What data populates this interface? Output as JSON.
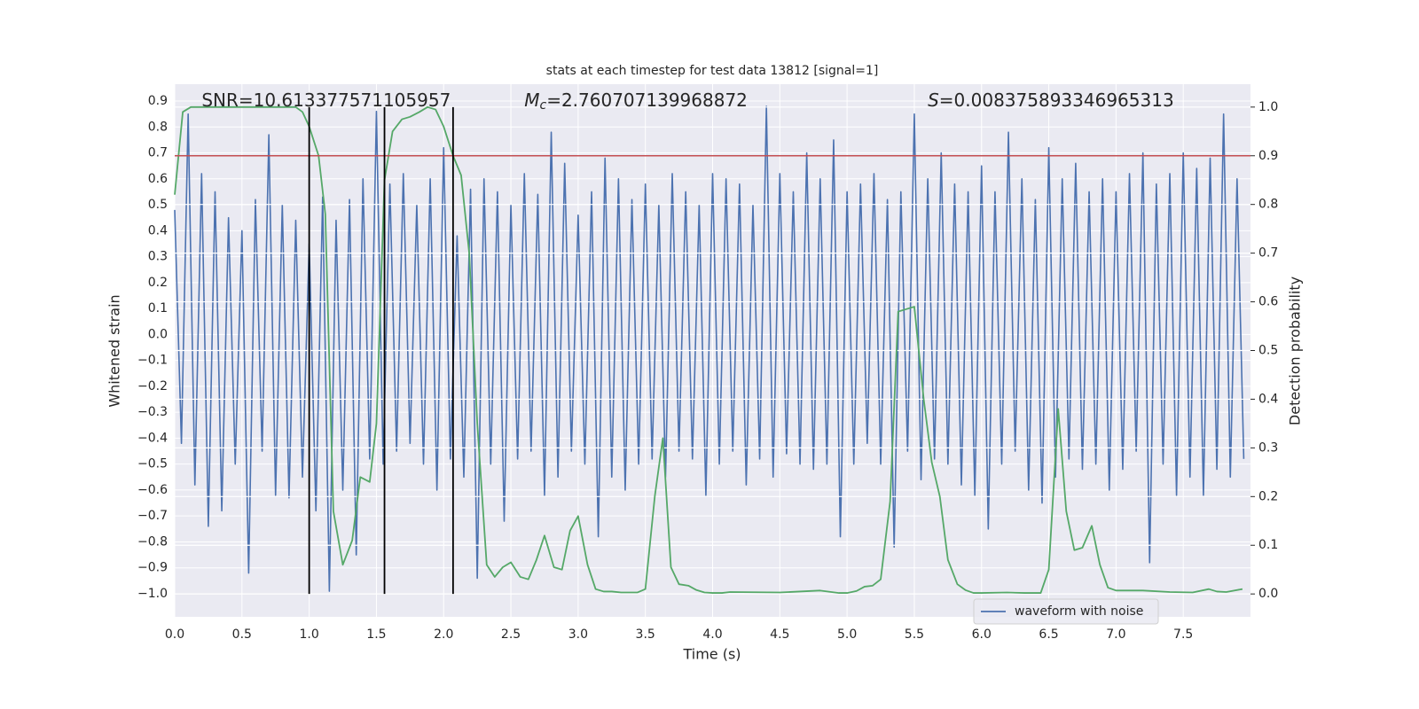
{
  "chart_data": {
    "type": "line",
    "title": "stats at each timestep for test data 13812 [signal=1]",
    "xlabel": "Time (s)",
    "ylabel": "Whitened strain",
    "y2label": "Detection probability",
    "annotations": [
      {
        "text": "SNR=10.613377571105957",
        "x": 0.2,
        "y": 0.9
      },
      {
        "symbol": "M",
        "subscript": "c",
        "text": "=2.760707139968872",
        "x": 2.6,
        "y": 0.9
      },
      {
        "symbol": "S",
        "text": "=0.008375893346965313",
        "x": 5.6,
        "y": 0.9
      }
    ],
    "xlim": [
      0,
      8.0
    ],
    "xticks": [
      {
        "value": 0,
        "label": "0.0"
      },
      0.5,
      {
        "value": 1,
        "label": "1.0"
      },
      1.5,
      {
        "value": 2,
        "label": "2.0"
      },
      2.5,
      {
        "value": 3,
        "label": "3.0"
      },
      3.5,
      {
        "value": 4,
        "label": "4.0"
      },
      4.5,
      {
        "value": 5,
        "label": "5.0"
      },
      5.5,
      {
        "value": 6,
        "label": "6.0"
      },
      6.5,
      {
        "value": 7,
        "label": "7.0"
      },
      7.5
    ],
    "ylim": [
      -1.089,
      0.965
    ],
    "yticks": [
      {
        "value": -1,
        "label": "−1.0"
      },
      {
        "value": -0.9,
        "label": "−0.9"
      },
      {
        "value": -0.8,
        "label": "−0.8"
      },
      {
        "value": -0.7,
        "label": "−0.7"
      },
      {
        "value": -0.6,
        "label": "−0.6"
      },
      {
        "value": -0.5,
        "label": "−0.5"
      },
      {
        "value": -0.4,
        "label": "−0.4"
      },
      {
        "value": -0.3,
        "label": "−0.3"
      },
      {
        "value": -0.2,
        "label": "−0.2"
      },
      {
        "value": -0.1,
        "label": "−0.1"
      },
      {
        "value": 0,
        "label": "0.0"
      },
      0.1,
      0.2,
      0.3,
      0.4,
      0.5,
      0.6,
      0.7,
      0.8,
      0.9
    ],
    "y2lim": [
      -0.047,
      1.047
    ],
    "y2ticks": [
      {
        "value": 0,
        "label": "0.0"
      },
      0.1,
      0.2,
      0.3,
      0.4,
      0.5,
      0.6,
      0.7,
      0.8,
      0.9,
      {
        "value": 1,
        "label": "1.0"
      }
    ],
    "grid": true,
    "legend": "lower right",
    "hlines": [
      {
        "value": 0.9,
        "axis": "y2",
        "color": "#c44e52"
      }
    ],
    "vlines": [
      1.0,
      1.56,
      2.07
    ],
    "vline_span": [
      0,
      1
    ],
    "vline_color": "#000000",
    "series": [
      {
        "name": "waveform with noise",
        "color": "#4c72b0",
        "x": [
          0,
          0.05,
          0.1,
          0.15,
          0.2,
          0.25,
          0.3,
          0.35,
          0.4,
          0.45,
          0.5,
          0.55,
          0.6,
          0.65,
          0.7,
          0.75,
          0.8,
          0.85,
          0.9,
          0.95,
          1,
          1.05,
          1.1,
          1.15,
          1.2,
          1.25,
          1.3,
          1.35,
          1.4,
          1.45,
          1.5,
          1.55,
          1.6,
          1.65,
          1.7,
          1.75,
          1.8,
          1.85,
          1.9,
          1.95,
          2,
          2.05,
          2.1,
          2.15,
          2.2,
          2.25,
          2.3,
          2.35,
          2.4,
          2.45,
          2.5,
          2.55,
          2.6,
          2.65,
          2.7,
          2.75,
          2.8,
          2.85,
          2.9,
          2.95,
          3,
          3.05,
          3.1,
          3.15,
          3.2,
          3.25,
          3.3,
          3.35,
          3.4,
          3.45,
          3.5,
          3.55,
          3.6,
          3.65,
          3.7,
          3.75,
          3.8,
          3.85,
          3.9,
          3.95,
          4,
          4.05,
          4.1,
          4.15,
          4.2,
          4.25,
          4.3,
          4.35,
          4.4,
          4.45,
          4.5,
          4.55,
          4.6,
          4.65,
          4.7,
          4.75,
          4.8,
          4.85,
          4.9,
          4.95,
          5,
          5.05,
          5.1,
          5.15,
          5.2,
          5.25,
          5.3,
          5.35,
          5.4,
          5.45,
          5.5,
          5.55,
          5.6,
          5.65,
          5.7,
          5.75,
          5.8,
          5.85,
          5.9,
          5.95,
          6,
          6.05,
          6.1,
          6.15,
          6.2,
          6.25,
          6.3,
          6.35,
          6.4,
          6.45,
          6.5,
          6.55,
          6.6,
          6.65,
          6.7,
          6.75,
          6.8,
          6.85,
          6.9,
          6.95,
          7,
          7.05,
          7.1,
          7.15,
          7.2,
          7.25,
          7.3,
          7.35,
          7.4,
          7.45,
          7.5,
          7.55,
          7.6,
          7.65,
          7.7,
          7.75,
          7.8,
          7.85,
          7.9,
          7.95
        ],
        "values": [
          0.48,
          -0.42,
          0.85,
          -0.58,
          0.62,
          -0.74,
          0.55,
          -0.68,
          0.45,
          -0.5,
          0.4,
          -0.92,
          0.52,
          -0.45,
          0.77,
          -0.62,
          0.5,
          -0.63,
          0.44,
          -0.55,
          0.35,
          -0.68,
          0.53,
          -0.99,
          0.44,
          -0.6,
          0.52,
          -0.85,
          0.6,
          -0.48,
          0.86,
          -0.5,
          0.58,
          -0.45,
          0.62,
          -0.42,
          0.5,
          -0.5,
          0.6,
          -0.6,
          0.72,
          -0.48,
          0.38,
          -0.55,
          0.56,
          -0.94,
          0.6,
          -0.5,
          0.55,
          -0.72,
          0.5,
          -0.48,
          0.62,
          -0.45,
          0.54,
          -0.62,
          0.78,
          -0.55,
          0.66,
          -0.45,
          0.46,
          -0.5,
          0.55,
          -0.78,
          0.68,
          -0.55,
          0.6,
          -0.6,
          0.52,
          -0.5,
          0.58,
          -0.48,
          0.5,
          -0.55,
          0.62,
          -0.45,
          0.55,
          -0.48,
          0.5,
          -0.62,
          0.62,
          -0.5,
          0.6,
          -0.45,
          0.58,
          -0.58,
          0.5,
          -0.48,
          0.88,
          -0.55,
          0.62,
          -0.46,
          0.55,
          -0.5,
          0.7,
          -0.52,
          0.6,
          -0.5,
          0.75,
          -0.78,
          0.55,
          -0.5,
          0.58,
          -0.42,
          0.62,
          -0.5,
          0.52,
          -0.82,
          0.55,
          -0.45,
          0.85,
          -0.56,
          0.6,
          -0.48,
          0.7,
          -0.5,
          0.58,
          -0.58,
          0.55,
          -0.62,
          0.65,
          -0.75,
          0.55,
          -0.5,
          0.78,
          -0.45,
          0.6,
          -0.6,
          0.52,
          -0.65,
          0.72,
          -0.55,
          0.6,
          -0.48,
          0.66,
          -0.52,
          0.55,
          -0.5,
          0.6,
          -0.6,
          0.55,
          -0.52,
          0.62,
          -0.45,
          0.7,
          -0.88,
          0.58,
          -0.5,
          0.62,
          -0.62,
          0.7,
          -0.55,
          0.64,
          -0.62,
          0.68,
          -0.52,
          0.85,
          -0.55,
          0.6,
          -0.48
        ]
      },
      {
        "color": "#55a868",
        "axis": "y2",
        "x": [
          0,
          0.06,
          0.12,
          0.5,
          0.9,
          0.95,
          1.0,
          1.07,
          1.12,
          1.18,
          1.25,
          1.32,
          1.38,
          1.45,
          1.5,
          1.56,
          1.62,
          1.69,
          1.75,
          1.82,
          1.88,
          1.94,
          2.0,
          2.07,
          2.13,
          2.19,
          2.25,
          2.32,
          2.38,
          2.44,
          2.5,
          2.57,
          2.63,
          2.69,
          2.75,
          2.82,
          2.88,
          2.94,
          3.0,
          3.07,
          3.13,
          3.19,
          3.25,
          3.32,
          3.38,
          3.44,
          3.5,
          3.57,
          3.63,
          3.69,
          3.75,
          3.82,
          3.88,
          3.94,
          4.0,
          4.07,
          4.13,
          4.5,
          4.8,
          4.94,
          5.0,
          5.07,
          5.13,
          5.19,
          5.25,
          5.32,
          5.38,
          5.44,
          5.5,
          5.57,
          5.63,
          5.69,
          5.75,
          5.82,
          5.88,
          5.94,
          6.0,
          6.19,
          6.32,
          6.44,
          6.5,
          6.57,
          6.63,
          6.69,
          6.75,
          6.82,
          6.88,
          6.94,
          7.0,
          7.2,
          7.4,
          7.57,
          7.69,
          7.75,
          7.82,
          7.94
        ],
        "values": [
          0.82,
          0.99,
          1.0,
          1.0,
          1.0,
          0.99,
          0.96,
          0.9,
          0.78,
          0.17,
          0.06,
          0.11,
          0.24,
          0.23,
          0.35,
          0.85,
          0.95,
          0.975,
          0.98,
          0.99,
          1.0,
          0.995,
          0.96,
          0.9,
          0.86,
          0.7,
          0.35,
          0.06,
          0.035,
          0.055,
          0.065,
          0.035,
          0.03,
          0.07,
          0.12,
          0.055,
          0.05,
          0.13,
          0.16,
          0.06,
          0.01,
          0.005,
          0.005,
          0.003,
          0.003,
          0.003,
          0.01,
          0.2,
          0.32,
          0.055,
          0.02,
          0.017,
          0.008,
          0.003,
          0.002,
          0.002,
          0.004,
          0.003,
          0.007,
          0.002,
          0.002,
          0.006,
          0.015,
          0.017,
          0.03,
          0.19,
          0.58,
          0.585,
          0.59,
          0.4,
          0.27,
          0.2,
          0.07,
          0.02,
          0.008,
          0.002,
          0.002,
          0.003,
          0.002,
          0.002,
          0.05,
          0.38,
          0.17,
          0.09,
          0.095,
          0.14,
          0.06,
          0.013,
          0.007,
          0.007,
          0.004,
          0.003,
          0.01,
          0.005,
          0.004,
          0.01
        ]
      }
    ]
  }
}
